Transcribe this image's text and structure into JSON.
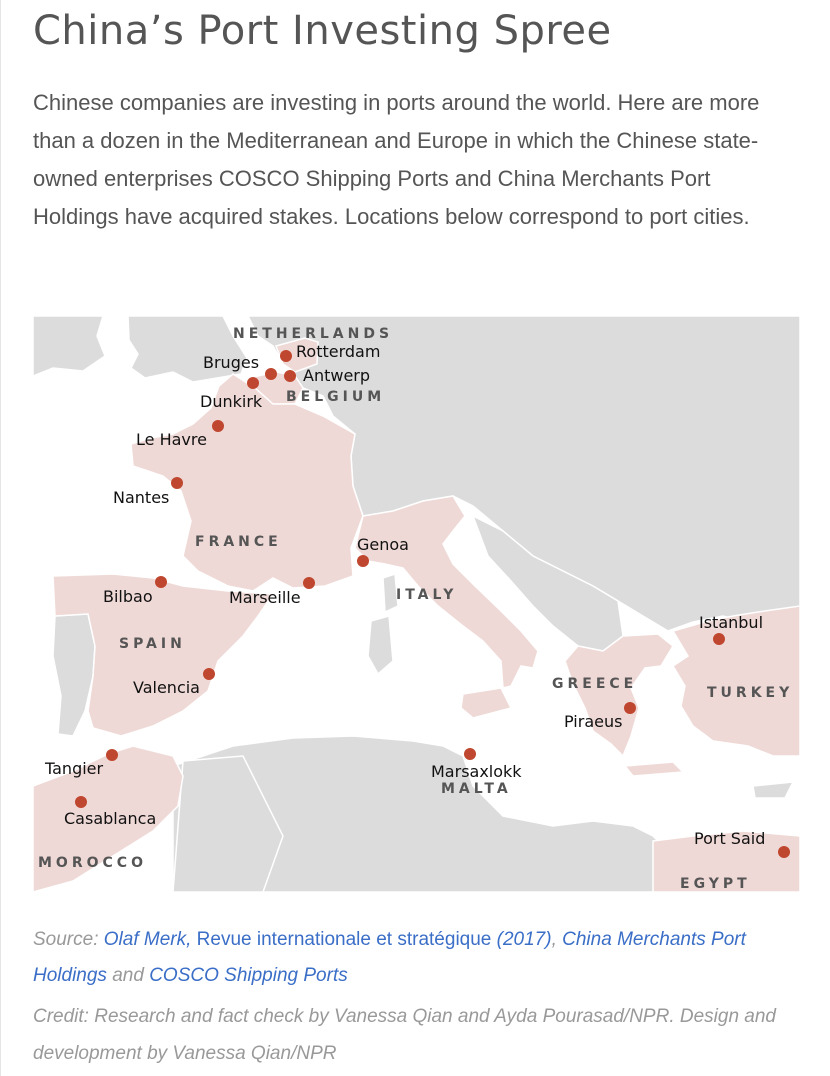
{
  "header": {
    "title": "China’s Port Investing Spree",
    "intro": "Chinese companies are investing in ports around the world. Here are more than a dozen in the Mediterranean and Europe in which the Chinese state-owned enterprises COSCO Shipping Ports and China Merchants Port Holdings have acquired stakes. Locations below correspond to port cities."
  },
  "map": {
    "colors": {
      "sea": "#ffffff",
      "land": "#dcdcdc",
      "highlight": "#efd9d6",
      "border": "#ffffff",
      "marker": "#c0472f"
    },
    "countries": [
      {
        "name": "NETHERLANDS"
      },
      {
        "name": "BELGIUM"
      },
      {
        "name": "FRANCE"
      },
      {
        "name": "SPAIN"
      },
      {
        "name": "ITALY"
      },
      {
        "name": "GREECE"
      },
      {
        "name": "TURKEY"
      },
      {
        "name": "MALTA"
      },
      {
        "name": "MOROCCO"
      },
      {
        "name": "EGYPT"
      }
    ],
    "ports": [
      {
        "name": "Rotterdam"
      },
      {
        "name": "Bruges"
      },
      {
        "name": "Antwerp"
      },
      {
        "name": "Dunkirk"
      },
      {
        "name": "Le Havre"
      },
      {
        "name": "Nantes"
      },
      {
        "name": "Genoa"
      },
      {
        "name": "Bilbao"
      },
      {
        "name": "Marseille"
      },
      {
        "name": "Istanbul"
      },
      {
        "name": "Valencia"
      },
      {
        "name": "Piraeus"
      },
      {
        "name": "Tangier"
      },
      {
        "name": "Marsaxlokk"
      },
      {
        "name": "Casablanca"
      },
      {
        "name": "Port Said"
      }
    ]
  },
  "footer": {
    "source_label": "Source:",
    "source_author": "Olaf Merk,",
    "source_journal": "Revue internationale et stratégique",
    "source_year": "(2017)",
    "source_comma": ",",
    "source_link2": "China Merchants Port Holdings",
    "source_and": "and",
    "source_link3": "COSCO Shipping Ports",
    "credit": "Credit: Research and fact check by Vanessa Qian and Ayda Pourasad/NPR. Design and development by Vanessa Qian/NPR"
  }
}
